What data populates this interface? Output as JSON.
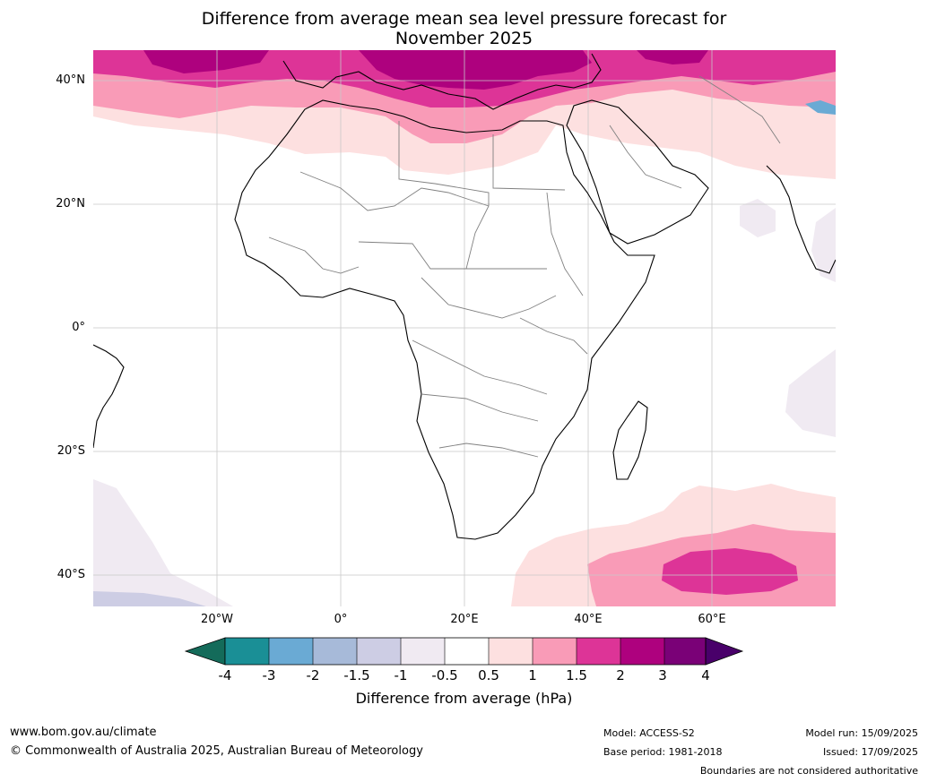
{
  "title": {
    "line1": "Difference from average mean sea level pressure forecast for",
    "line2": "November 2025"
  },
  "map": {
    "latitude_labels": [
      "40°N",
      "20°N",
      "0°",
      "20°S",
      "40°S"
    ],
    "longitude_labels": [
      "20°W",
      "0°",
      "20°E",
      "40°E",
      "60°E"
    ]
  },
  "colorbar": {
    "ticks": [
      "-4",
      "-3",
      "-2",
      "-1.5",
      "-1",
      "-0.5",
      "0.5",
      "1",
      "1.5",
      "2",
      "3",
      "4"
    ],
    "colors": [
      "#146b5a",
      "#1a8f96",
      "#6aaad4",
      "#a7bad9",
      "#cdcde4",
      "#f0eaf2",
      "#ffffff",
      "#fde0e0",
      "#f99bb7",
      "#dd3497",
      "#ae017e",
      "#7a0177",
      "#49006a"
    ],
    "label": "Difference from average (hPa)"
  },
  "footer": {
    "website": "www.bom.gov.au/climate",
    "copyright": "© Commonwealth of Australia 2025, Australian Bureau of Meteorology",
    "model": "Model: ACCESS-S2",
    "base_period": "Base period: 1981-2018",
    "model_run": "Model run: 15/09/2025",
    "issued": "Issued: 17/09/2025",
    "disclaimer": "Boundaries are not considered authoritative"
  }
}
